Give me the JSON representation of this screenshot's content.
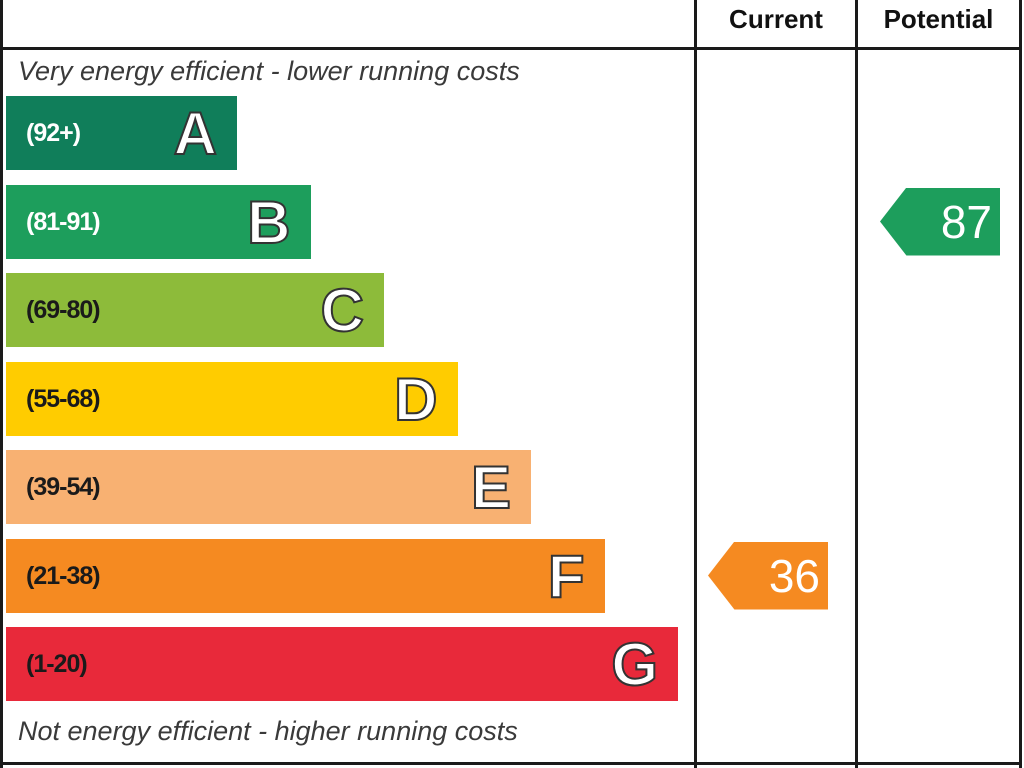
{
  "header": {
    "current_label": "Current",
    "potential_label": "Potential"
  },
  "captions": {
    "top": "Very energy efficient - lower running costs",
    "bottom": "Not energy efficient - higher running costs"
  },
  "chart_data": {
    "type": "bar",
    "categories": [
      "A",
      "B",
      "C",
      "D",
      "E",
      "F",
      "G"
    ],
    "ranges": [
      "(92+)",
      "(81-91)",
      "(69-80)",
      "(55-68)",
      "(39-54)",
      "(21-38)",
      "(1-20)"
    ],
    "range_min": [
      92,
      81,
      69,
      55,
      39,
      21,
      1
    ],
    "colors": [
      "#107e5a",
      "#1d9e5c",
      "#8dbb3a",
      "#ffcc00",
      "#f8b172",
      "#f58a21",
      "#e8293a"
    ],
    "range_text_colors": [
      "#ffffff",
      "#ffffff",
      "#1a1a1a",
      "#1a1a1a",
      "#1a1a1a",
      "#1a1a1a",
      "#1a1a1a"
    ],
    "current": {
      "value": 36,
      "band": "F",
      "color": "#f58a21"
    },
    "potential": {
      "value": 87,
      "band": "B",
      "color": "#1d9e5c"
    }
  }
}
